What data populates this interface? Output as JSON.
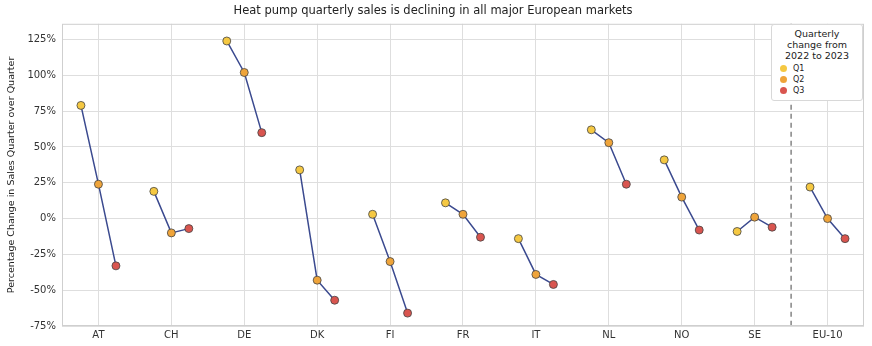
{
  "chart_data": {
    "type": "scatter",
    "title": "Heat pump quarterly sales is declining in all major European markets",
    "y_label": "Percentage Change in Sales Quarter over Quarter",
    "categories": [
      "AT",
      "CH",
      "DE",
      "DK",
      "FI",
      "FR",
      "IT",
      "NL",
      "NO",
      "SE",
      "EU-10"
    ],
    "series": [
      {
        "name": "Q1",
        "color": "#f5c842",
        "values": [
          79,
          19,
          124,
          34,
          3,
          11,
          -14,
          62,
          41,
          -9,
          22
        ]
      },
      {
        "name": "Q2",
        "color": "#efa43a",
        "values": [
          24,
          -10,
          102,
          -43,
          -30,
          3,
          -39,
          53,
          15,
          1,
          0
        ]
      },
      {
        "name": "Q3",
        "color": "#d9554f",
        "values": [
          -33,
          -7,
          60,
          -57,
          -66,
          -13,
          -46,
          24,
          -8,
          -6,
          -14
        ]
      }
    ],
    "color": "#3b4a8f",
    "marker": "circle",
    "ylim": [
      -75,
      136
    ],
    "yticks": [
      {
        "value": -75,
        "label": "-75%"
      },
      {
        "value": -50,
        "label": "-50%"
      },
      {
        "value": -25,
        "label": "-25%"
      },
      {
        "value": 0,
        "label": "0%"
      },
      {
        "value": 25,
        "label": "25%"
      },
      {
        "value": 50,
        "label": "50%"
      },
      {
        "value": 75,
        "label": "75%"
      },
      {
        "value": 100,
        "label": "100%"
      },
      {
        "value": 125,
        "label": "125%"
      }
    ],
    "grid": true,
    "legend": "upper right",
    "legend_title": "Quarterly change from 2022 to 2023"
  }
}
